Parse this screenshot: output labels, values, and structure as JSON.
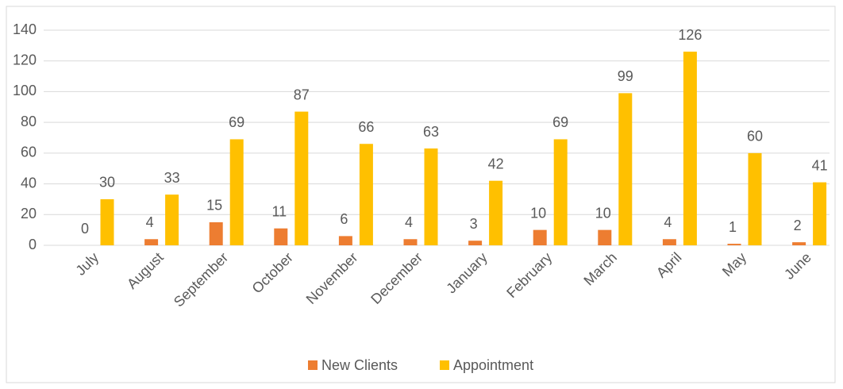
{
  "chart_data": {
    "type": "bar",
    "categories": [
      "July",
      "August",
      "September",
      "October",
      "November",
      "December",
      "January",
      "February",
      "March",
      "April",
      "May",
      "June"
    ],
    "series": [
      {
        "name": "New Clients",
        "color": "#ed7d31",
        "values": [
          0,
          4,
          15,
          11,
          6,
          4,
          3,
          10,
          10,
          4,
          1,
          2
        ]
      },
      {
        "name": "Appointment",
        "color": "#ffc000",
        "values": [
          30,
          33,
          69,
          87,
          66,
          63,
          42,
          69,
          99,
          126,
          60,
          41
        ]
      }
    ],
    "ylim": [
      0,
      140
    ],
    "yticks": [
      0,
      20,
      40,
      60,
      80,
      100,
      120,
      140
    ],
    "grid": true,
    "legend": "bottom"
  }
}
